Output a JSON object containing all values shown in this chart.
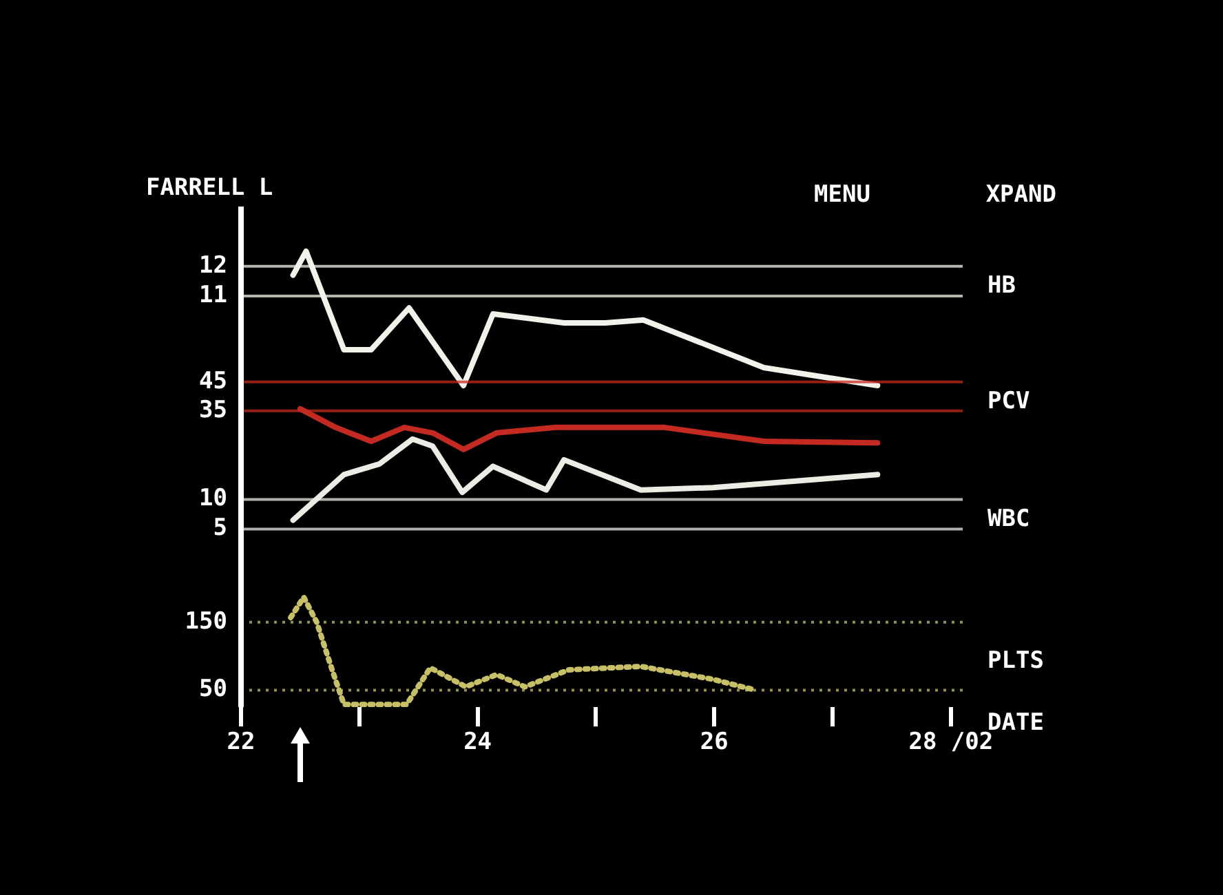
{
  "chart_data": [
    {
      "type": "line",
      "title": "FARRELL L",
      "annotations": [
        "MENU",
        "XPAND"
      ],
      "xlim": [
        22,
        28.1
      ],
      "tick_labels": "y",
      "ylim": [
        2,
        14
      ],
      "yticks": [
        11,
        12
      ],
      "y2lim": [
        -18,
        105.5
      ],
      "y2ticks": [
        35,
        45
      ],
      "y3lim": [
        -1,
        59.5
      ],
      "y3ticks": [
        5,
        10
      ],
      "grid": "y",
      "marker": "none",
      "series": [
        {
          "name": "HB",
          "color": "#f2f2ea",
          "x": [
            22.44,
            22.55,
            22.87,
            23.1,
            23.42,
            23.88,
            24.13,
            24.73,
            25.08,
            25.4,
            26.42,
            27.38
          ],
          "values": [
            11.7,
            12.5,
            9.2,
            9.2,
            10.6,
            8.0,
            10.4,
            10.1,
            10.1,
            10.2,
            8.6,
            8.0
          ]
        },
        {
          "name": "PCV",
          "color": "#c42a22",
          "axis": "y2",
          "x": [
            22.5,
            22.8,
            23.1,
            23.38,
            23.62,
            23.88,
            24.16,
            24.66,
            25.58,
            26.42,
            27.38
          ],
          "values": [
            35.7,
            29.3,
            24.5,
            29.3,
            27.4,
            21.7,
            27.4,
            29.3,
            29.3,
            24.5,
            24.0
          ]
        },
        {
          "name": "WBC",
          "color": "#ecece4",
          "axis": "y3",
          "x": [
            22.44,
            22.87,
            23.17,
            23.45,
            23.62,
            23.87,
            24.13,
            24.58,
            24.73,
            25.38,
            25.99,
            27.38
          ],
          "values": [
            6.5,
            14.2,
            16,
            20.2,
            19,
            11.2,
            15.6,
            11.6,
            16.7,
            11.6,
            12,
            14.2
          ]
        }
      ]
    },
    {
      "type": "line",
      "xlabel": "DATE",
      "xlim": [
        22,
        28.1
      ],
      "xticks": [
        22,
        {
          "value": 23,
          "label": null
        },
        24,
        {
          "value": 25,
          "label": null
        },
        26,
        {
          "value": 27,
          "label": null
        },
        {
          "value": 28,
          "label": "28 /02"
        }
      ],
      "ylim": [
        25,
        235
      ],
      "yticks": [
        50,
        150
      ],
      "grid": "y",
      "marker": "none",
      "line_style": "dotted",
      "series": [
        {
          "name": "PLTS",
          "color": "#c8c066",
          "x": [
            22.42,
            22.53,
            22.64,
            22.77,
            22.87,
            23.4,
            23.6,
            23.9,
            24.16,
            24.4,
            24.77,
            25.38,
            25.99,
            26.35
          ],
          "values": [
            157,
            187,
            150,
            80,
            29,
            29,
            83,
            55,
            73,
            55,
            80,
            85,
            66,
            50
          ]
        }
      ]
    }
  ]
}
